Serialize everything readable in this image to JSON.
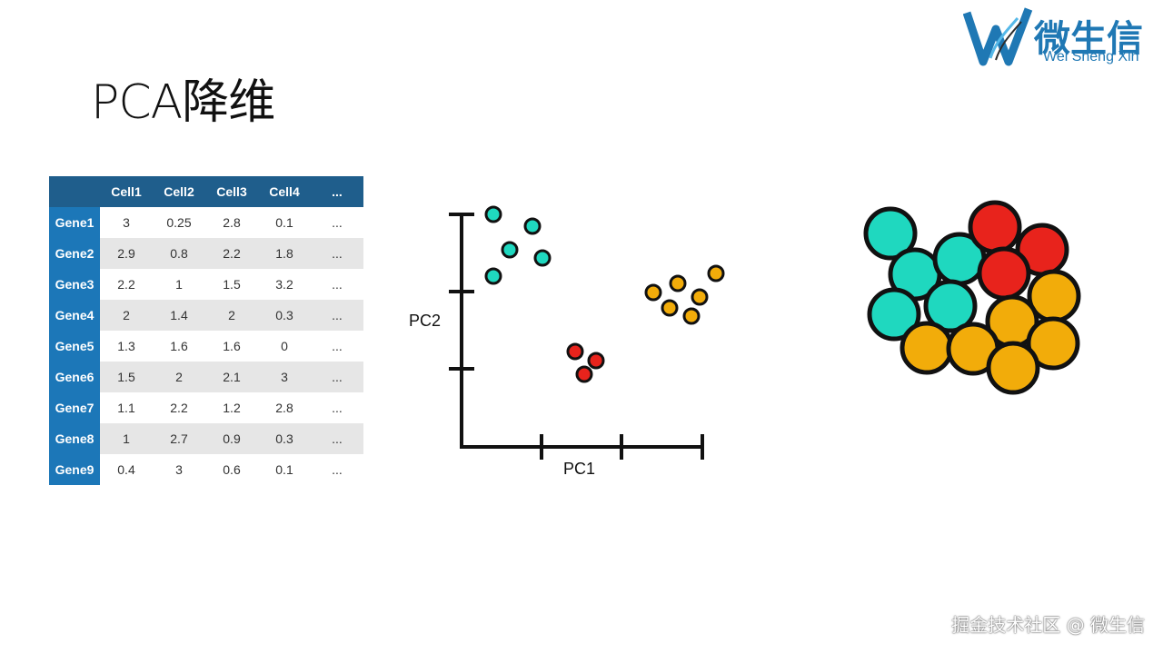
{
  "title": "PCA降维",
  "logo": {
    "cn": "微生信",
    "en": "Wei Sheng Xin"
  },
  "table": {
    "columns": [
      "Cell1",
      "Cell2",
      "Cell3",
      "Cell4",
      "..."
    ],
    "rows": [
      {
        "gene": "Gene1",
        "values": [
          "3",
          "0.25",
          "2.8",
          "0.1",
          "..."
        ]
      },
      {
        "gene": "Gene2",
        "values": [
          "2.9",
          "0.8",
          "2.2",
          "1.8",
          "..."
        ]
      },
      {
        "gene": "Gene3",
        "values": [
          "2.2",
          "1",
          "1.5",
          "3.2",
          "..."
        ]
      },
      {
        "gene": "Gene4",
        "values": [
          "2",
          "1.4",
          "2",
          "0.3",
          "..."
        ]
      },
      {
        "gene": "Gene5",
        "values": [
          "1.3",
          "1.6",
          "1.6",
          "0",
          "..."
        ]
      },
      {
        "gene": "Gene6",
        "values": [
          "1.5",
          "2",
          "2.1",
          "3",
          "..."
        ]
      },
      {
        "gene": "Gene7",
        "values": [
          "1.1",
          "2.2",
          "1.2",
          "2.8",
          "..."
        ]
      },
      {
        "gene": "Gene8",
        "values": [
          "1",
          "2.7",
          "0.9",
          "0.3",
          "..."
        ]
      },
      {
        "gene": "Gene9",
        "values": [
          "0.4",
          "3",
          "0.6",
          "0.1",
          "..."
        ]
      }
    ],
    "colors": {
      "header": "#1f5e8c",
      "rowhead": "#1c77b8",
      "shade": "#e6e6e6"
    }
  },
  "scatter": {
    "xlabel": "PC1",
    "ylabel": "PC2",
    "colors": {
      "teal": "#1fd8bf",
      "red": "#e8231c",
      "orange": "#f2ac0a"
    }
  },
  "footer": "掘金技术社区 @ 微生信"
}
